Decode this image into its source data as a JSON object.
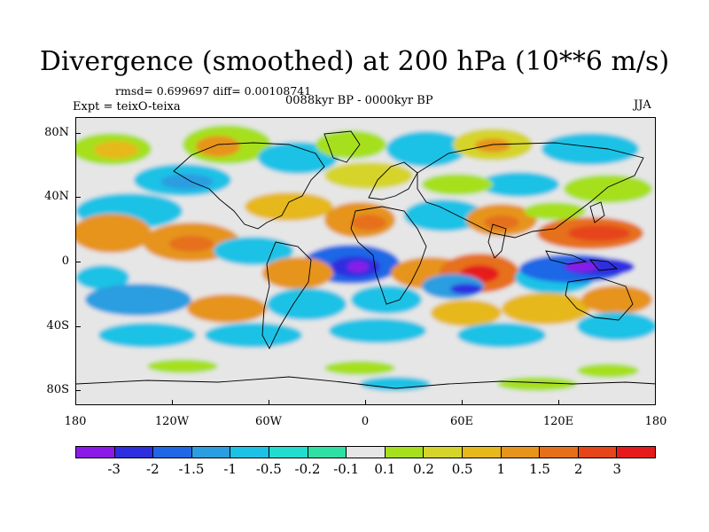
{
  "title": "Divergence (smoothed) at 200 hPa (10**6 m/s)",
  "stats": "rmsd= 0.699697 diff= 0.00108741",
  "experiment": "Expt = teixO-teixa",
  "period": "0088kyr BP - 0000kyr BP",
  "season": "JJA",
  "lat_labels": [
    "80N",
    "40N",
    "0",
    "40S",
    "80S"
  ],
  "lon_labels": [
    "180",
    "120W",
    "60W",
    "0",
    "60E",
    "120E",
    "180"
  ],
  "colorbar": {
    "colors": [
      "#8b1ae8",
      "#2d2ee0",
      "#1f67e6",
      "#2a9ee0",
      "#1cc2e6",
      "#22dcd0",
      "#2fe0a4",
      "#e6e6e6",
      "#a6e01c",
      "#d6d42a",
      "#e6b81a",
      "#e6941a",
      "#e6701a",
      "#e6451a",
      "#e61a1a"
    ],
    "labels": [
      "-3",
      "-2",
      "-1.5",
      "-1",
      "-0.5",
      "-0.2",
      "-0.1",
      "0.1",
      "0.2",
      "0.5",
      "1",
      "1.5",
      "2",
      "3"
    ]
  }
}
